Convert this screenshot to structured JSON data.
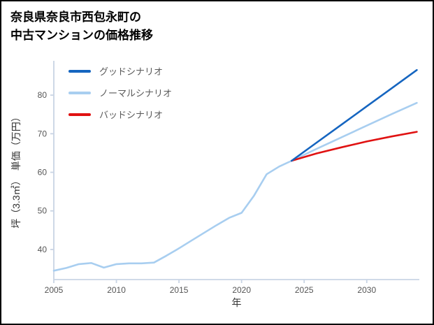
{
  "title": {
    "line1": "奈良県奈良市西包永町の",
    "line2": "中古マンションの価格推移"
  },
  "chart_data": {
    "type": "line",
    "title": "奈良県奈良市西包永町の中古マンションの価格推移",
    "xlabel": "年",
    "ylabel": "坪（3.3㎡）　単価（万円）",
    "xlim": [
      2005,
      2034.2
    ],
    "ylim": [
      32.2,
      88.9
    ],
    "xticks": [
      2005,
      2010,
      2015,
      2020,
      2025,
      2030
    ],
    "yticks": [
      40,
      50,
      60,
      70,
      80
    ],
    "grid": false,
    "legend_position": "top-left",
    "axis_color": "#c9d4e4",
    "series": [
      {
        "name": "グッドシナリオ",
        "color": "#1565c0",
        "x": [
          2024,
          2026,
          2028,
          2030,
          2032,
          2034
        ],
        "y": [
          63.0,
          67.7,
          72.4,
          77.1,
          81.8,
          86.5
        ]
      },
      {
        "name": "ノーマルシナリオ",
        "color": "#a8cef0",
        "x": [
          2005,
          2006,
          2007,
          2008,
          2009,
          2010,
          2011,
          2012,
          2013,
          2014,
          2015,
          2016,
          2017,
          2018,
          2019,
          2020,
          2021,
          2022,
          2023,
          2024,
          2026,
          2028,
          2030,
          2032,
          2034
        ],
        "y": [
          34.5,
          35.2,
          36.2,
          36.5,
          35.3,
          36.2,
          36.4,
          36.4,
          36.6,
          38.4,
          40.3,
          42.3,
          44.3,
          46.3,
          48.2,
          49.5,
          54.0,
          59.5,
          61.5,
          63.0,
          66.1,
          69.1,
          72.1,
          75.1,
          78.0
        ]
      },
      {
        "name": "バッドシナリオ",
        "color": "#e01212",
        "x": [
          2024,
          2026,
          2028,
          2030,
          2032,
          2034
        ],
        "y": [
          63.0,
          64.9,
          66.5,
          68.0,
          69.3,
          70.5
        ]
      }
    ]
  }
}
